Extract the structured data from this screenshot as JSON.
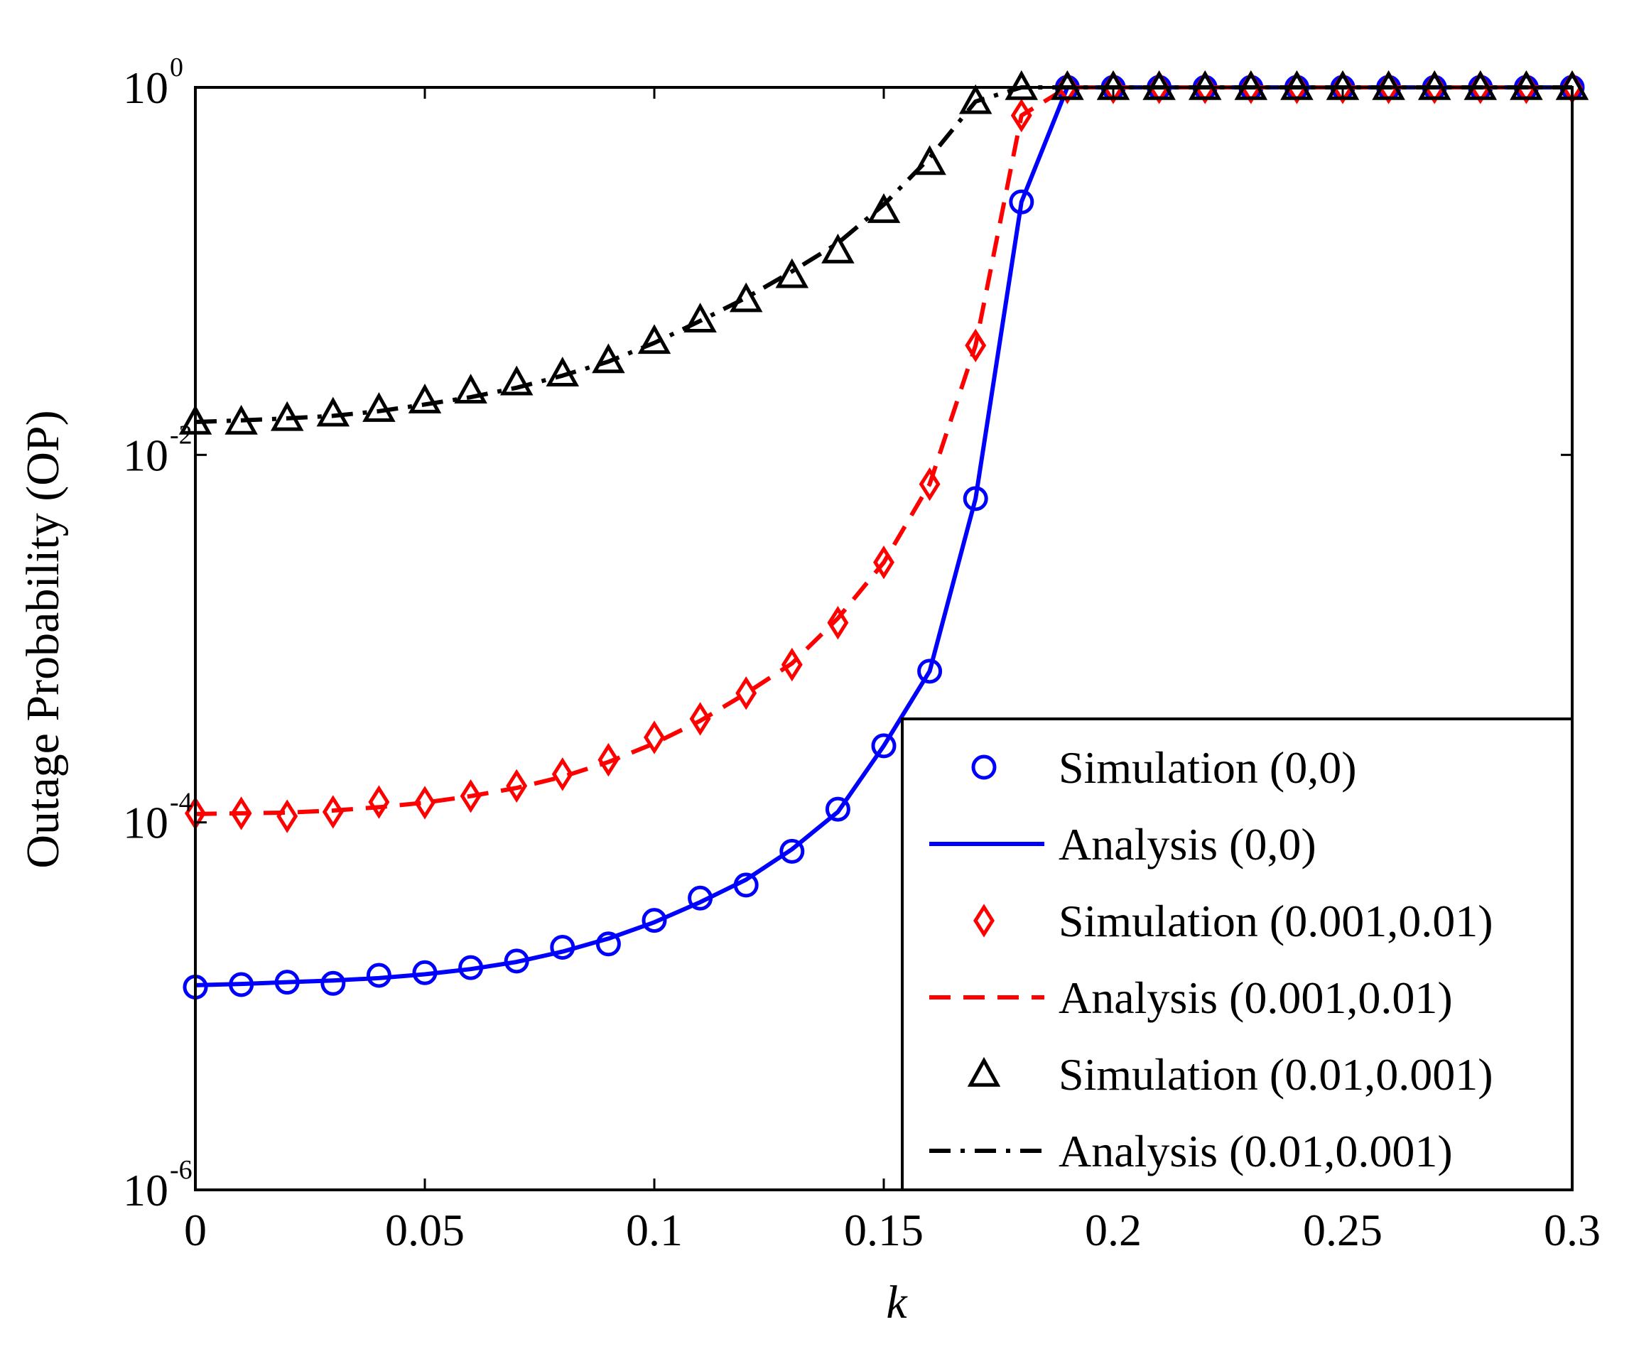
{
  "chart_data": {
    "type": "line",
    "xlabel": "k",
    "ylabel": "Outage  Probability (OP)",
    "xlim": [
      0,
      0.3
    ],
    "ylim": [
      1e-06,
      1
    ],
    "yscale": "log",
    "grid": false,
    "legend_position": "bottom-right",
    "x_ticks": [
      {
        "value": 0,
        "label": "0"
      },
      {
        "value": 0.05,
        "label": "0.05"
      },
      {
        "value": 0.1,
        "label": "0.1"
      },
      {
        "value": 0.15,
        "label": "0.15"
      },
      {
        "value": 0.2,
        "label": "0.2"
      },
      {
        "value": 0.25,
        "label": "0.25"
      },
      {
        "value": 0.3,
        "label": "0.3"
      }
    ],
    "y_ticks": [
      {
        "value": 1,
        "base": "10",
        "exp": "0"
      },
      {
        "value": 0.01,
        "base": "10",
        "exp": "-2"
      },
      {
        "value": 0.0001,
        "base": "10",
        "exp": "-4"
      },
      {
        "value": 1e-06,
        "base": "10",
        "exp": "-6"
      }
    ],
    "x": [
      0,
      0.01,
      0.02,
      0.03,
      0.04,
      0.05,
      0.06,
      0.07,
      0.08,
      0.09,
      0.1,
      0.11,
      0.12,
      0.13,
      0.14,
      0.15,
      0.16,
      0.17,
      0.18,
      0.19,
      0.2,
      0.21,
      0.22,
      0.23,
      0.24,
      0.25,
      0.26,
      0.27,
      0.28,
      0.29,
      0.3
    ],
    "series": [
      {
        "name": "Simulation (0,0)",
        "kind": "simulation",
        "marker": "circle",
        "color": "#0000ff",
        "values": [
          1.27e-05,
          1.31e-05,
          1.35e-05,
          1.33e-05,
          1.47e-05,
          1.52e-05,
          1.62e-05,
          1.76e-05,
          2.09e-05,
          2.18e-05,
          2.93e-05,
          3.87e-05,
          4.56e-05,
          6.96e-05,
          0.000118,
          0.000261,
          0.000665,
          0.00578,
          0.238,
          1.0,
          1.0,
          1.0,
          1.0,
          1.0,
          1.0,
          1.0,
          1.0,
          1.0,
          1.0,
          1.0,
          1.0
        ]
      },
      {
        "name": "Analysis (0,0)",
        "kind": "analysis",
        "dash": "solid",
        "color": "#0000ff",
        "values": [
          1.3e-05,
          1.32e-05,
          1.35e-05,
          1.38e-05,
          1.42e-05,
          1.49e-05,
          1.59e-05,
          1.74e-05,
          1.98e-05,
          2.33e-05,
          2.86e-05,
          3.68e-05,
          4.88e-05,
          7.14e-05,
          0.000114,
          0.000261,
          0.000665,
          0.00578,
          0.238,
          1.0,
          1.0,
          1.0,
          1.0,
          1.0,
          1.0,
          1.0,
          1.0,
          1.0,
          1.0,
          1.0,
          1.0
        ]
      },
      {
        "name": "Simulation (0.001,0.01)",
        "kind": "simulation",
        "marker": "diamond",
        "color": "#ff0000",
        "values": [
          0.000112,
          0.000112,
          0.000108,
          0.000114,
          0.000129,
          0.000128,
          0.000139,
          0.000158,
          0.000183,
          0.000219,
          0.00029,
          0.000366,
          0.000505,
          0.000722,
          0.00122,
          0.0026,
          0.00693,
          0.0394,
          0.703,
          1.0,
          1.0,
          1.0,
          1.0,
          1.0,
          1.0,
          1.0,
          1.0,
          1.0,
          1.0,
          1.0,
          1.0
        ]
      },
      {
        "name": "Analysis (0.001,0.01)",
        "kind": "analysis",
        "dash": "dashed",
        "color": "#ff0000",
        "values": [
          0.000111,
          0.000112,
          0.000113,
          0.000116,
          0.000121,
          0.000128,
          0.000139,
          0.000154,
          0.000177,
          0.000213,
          0.000269,
          0.000357,
          0.000504,
          0.000733,
          0.00129,
          0.0026,
          0.00693,
          0.0394,
          0.703,
          1.0,
          1.0,
          1.0,
          1.0,
          1.0,
          1.0,
          1.0,
          1.0,
          1.0,
          1.0,
          1.0,
          1.0
        ]
      },
      {
        "name": "Simulation (0.01,0.001)",
        "kind": "simulation",
        "marker": "triangle",
        "color": "#000000",
        "values": [
          0.0151,
          0.0151,
          0.0158,
          0.0167,
          0.0177,
          0.0197,
          0.0223,
          0.0247,
          0.0276,
          0.0326,
          0.0415,
          0.0543,
          0.07,
          0.0947,
          0.129,
          0.214,
          0.391,
          0.838,
          1.0,
          1.0,
          1.0,
          1.0,
          1.0,
          1.0,
          1.0,
          1.0,
          1.0,
          1.0,
          1.0,
          1.0,
          1.0
        ]
      },
      {
        "name": "Analysis (0.01,0.001)",
        "kind": "analysis",
        "dash": "dashdot",
        "color": "#000000",
        "values": [
          0.0151,
          0.0154,
          0.0158,
          0.0163,
          0.0173,
          0.0188,
          0.0206,
          0.0232,
          0.027,
          0.0322,
          0.0407,
          0.0536,
          0.0716,
          0.0996,
          0.142,
          0.23,
          0.414,
          0.838,
          1.0,
          1.0,
          1.0,
          1.0,
          1.0,
          1.0,
          1.0,
          1.0,
          1.0,
          1.0,
          1.0,
          1.0,
          1.0
        ]
      }
    ]
  }
}
